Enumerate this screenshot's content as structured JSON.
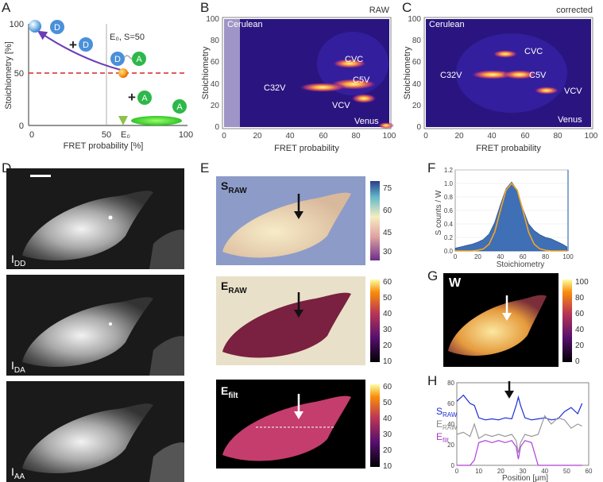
{
  "panels": {
    "A": "A",
    "B": "B",
    "C": "C",
    "D": "D",
    "E": "E",
    "F": "F",
    "G": "G",
    "H": "H"
  },
  "schematic": {
    "ylabel": "Stoichiometry [%]",
    "xlabel": "FRET probability [%]",
    "y_ticks": [
      "100",
      "50",
      "0"
    ],
    "x_ticks": [
      "0",
      "50",
      "E₀",
      "100"
    ],
    "e0_annotation": "E₀, S=50",
    "donor": "D",
    "acceptor": "A",
    "plus": "+"
  },
  "heatmap_raw": {
    "corner_label": "RAW",
    "ylabel": "Stoichiometry",
    "xlabel": "FRET probability",
    "ticks": [
      "0",
      "20",
      "40",
      "60",
      "80",
      "100"
    ],
    "labels": [
      "Cerulean",
      "CVC",
      "C5V",
      "C32V",
      "VCV",
      "Venus"
    ]
  },
  "heatmap_corrected": {
    "corner_label": "corrected",
    "ylabel": "Stoichiometry",
    "xlabel": "FRET probability",
    "ticks": [
      "0",
      "20",
      "40",
      "60",
      "80",
      "100"
    ],
    "labels": [
      "Cerulean",
      "CVC",
      "C32V",
      "C5V",
      "VCV",
      "Venus"
    ]
  },
  "cell_images": {
    "idd": {
      "main": "I",
      "sub": "DD"
    },
    "ida": {
      "main": "I",
      "sub": "DA"
    },
    "iaa": {
      "main": "I",
      "sub": "AA"
    }
  },
  "maps": {
    "s_raw": {
      "main": "S",
      "sub": "RAW",
      "cbar": [
        "75",
        "60",
        "45",
        "30"
      ]
    },
    "e_raw": {
      "main": "E",
      "sub": "RAW",
      "cbar": [
        "60",
        "50",
        "40",
        "30",
        "20",
        "10"
      ]
    },
    "e_filt": {
      "main": "E",
      "sub": "filt",
      "cbar": [
        "60",
        "50",
        "40",
        "30",
        "20",
        "10"
      ]
    },
    "w": {
      "main": "W",
      "cbar": [
        "100",
        "80",
        "60",
        "40",
        "20",
        "0"
      ]
    }
  },
  "chart_data": [
    {
      "type": "area",
      "title": "",
      "ylabel": "S counts / W",
      "xlabel": "Stoichiometry",
      "xlim": [
        0,
        100
      ],
      "ylim": [
        0,
        1.2
      ],
      "y_ticks": [
        "1.2",
        "1.0",
        "0.8",
        "0.6",
        "0.4",
        "0.2",
        "0.0"
      ],
      "x_ticks": [
        "0",
        "20",
        "40",
        "60",
        "80",
        "100"
      ],
      "x": [
        0,
        5,
        10,
        15,
        20,
        25,
        30,
        35,
        40,
        45,
        50,
        55,
        60,
        65,
        70,
        75,
        80,
        85,
        90,
        95,
        99
      ],
      "series": [
        {
          "name": "histogram",
          "values": [
            0.04,
            0.06,
            0.08,
            0.1,
            0.13,
            0.17,
            0.25,
            0.42,
            0.68,
            0.92,
            1.02,
            0.9,
            0.62,
            0.4,
            0.3,
            0.24,
            0.2,
            0.18,
            0.14,
            0.1,
            0.06
          ]
        },
        {
          "name": "gaussian fit",
          "values": [
            0.0,
            0.0,
            0.0,
            0.0,
            0.01,
            0.03,
            0.1,
            0.28,
            0.6,
            0.9,
            1.0,
            0.9,
            0.6,
            0.28,
            0.1,
            0.03,
            0.01,
            0.0,
            0.0,
            0.0,
            0.0
          ]
        }
      ]
    },
    {
      "type": "line",
      "title": "",
      "xlabel": "Position [μm]",
      "xlim": [
        0,
        60
      ],
      "ylim": [
        0,
        80
      ],
      "x_ticks": [
        "0",
        "10",
        "20",
        "30",
        "40",
        "50",
        "60"
      ],
      "y_ticks": [
        "80",
        "60",
        "40",
        "20",
        "0"
      ],
      "legend": [
        {
          "main": "S",
          "sub": "RAW"
        },
        {
          "main": "E",
          "sub": "RAW"
        },
        {
          "main": "E",
          "sub": "filt"
        }
      ],
      "x": [
        0,
        3,
        6,
        8,
        10,
        13,
        16,
        19,
        22,
        25,
        27,
        28,
        29,
        31,
        34,
        37,
        40,
        43,
        46,
        49,
        52,
        55,
        57
      ],
      "series": [
        {
          "name": "S_RAW",
          "values": [
            62,
            68,
            60,
            58,
            46,
            44,
            45,
            44,
            46,
            45,
            58,
            66,
            58,
            46,
            44,
            45,
            46,
            44,
            45,
            52,
            56,
            50,
            60
          ]
        },
        {
          "name": "E_RAW",
          "values": [
            30,
            32,
            28,
            40,
            26,
            30,
            28,
            30,
            28,
            30,
            24,
            12,
            22,
            30,
            28,
            30,
            48,
            40,
            46,
            44,
            36,
            40,
            38
          ]
        },
        {
          "name": "E_filt",
          "values": [
            0,
            0,
            0,
            5,
            22,
            24,
            22,
            24,
            22,
            24,
            18,
            6,
            18,
            24,
            22,
            0,
            0,
            0,
            0,
            0,
            0,
            0,
            0
          ]
        }
      ]
    }
  ]
}
